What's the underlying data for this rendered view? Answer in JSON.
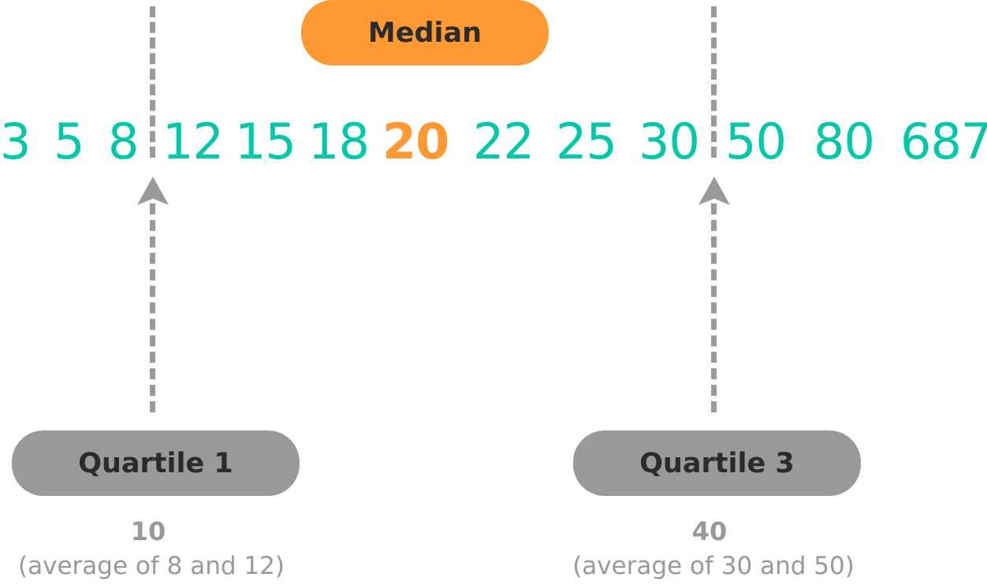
{
  "median": {
    "label": "Median",
    "value": "20"
  },
  "numbers": [
    "3",
    "5",
    "8",
    "12",
    "15",
    "18",
    "20",
    "22",
    "25",
    "30",
    "50",
    "80",
    "687"
  ],
  "quartile1": {
    "label": "Quartile 1",
    "value": "10",
    "note": "(average of 8 and 12)"
  },
  "quartile3": {
    "label": "Quartile 3",
    "value": "40",
    "note": "(average of 30 and 50)"
  },
  "colors": {
    "numbers": "#00c8a8",
    "median": "#ff9933",
    "quartile": "#999999",
    "label_text": "#2b2b2b"
  }
}
